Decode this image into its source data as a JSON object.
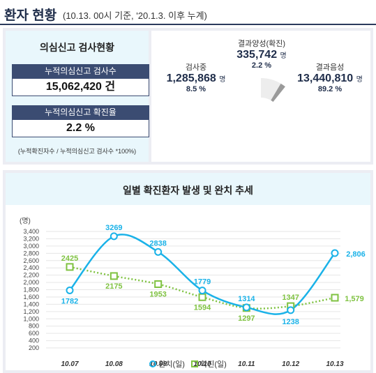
{
  "header": {
    "title": "환자 현황",
    "subtitle": "(10.13. 00시 기준, '20.1.3. 이후 누계)"
  },
  "test_box": {
    "title": "의심신고 검사현황",
    "total_label": "누적의심신고 검사수",
    "total_value": "15,062,420 건",
    "rate_label": "누적의심신고 확진율",
    "rate_value": "2.2 %",
    "note": "(누적확진자수 / 누적의심신고 검사수 *100%)"
  },
  "donut": {
    "positive": {
      "label": "결과양성(확진)",
      "value": "335,742",
      "unit": "명",
      "pct": "2.2 %"
    },
    "testing": {
      "label": "검사중",
      "value": "1,285,868",
      "unit": "명",
      "pct": "8.5 %"
    },
    "negative": {
      "label": "결과음성",
      "value": "13,440,810",
      "unit": "명",
      "pct": "89.2 %"
    },
    "colors": {
      "negative": "#1ab2e8",
      "testing": "#ededed",
      "positive": "#9a9a9a"
    }
  },
  "chart_data": {
    "type": "line",
    "title": "일별 확진환자 발생 및 완치 추세",
    "ylabel": "(명)",
    "ylim": [
      200,
      3400
    ],
    "yticks": [
      "200",
      "400",
      "600",
      "800",
      "1,000",
      "1,200",
      "1,400",
      "1,600",
      "1,800",
      "2,000",
      "2,200",
      "2,400",
      "2,600",
      "2,800",
      "3,000",
      "3,200",
      "3,400"
    ],
    "yticks_values": [
      200,
      400,
      600,
      800,
      1000,
      1200,
      1400,
      1600,
      1800,
      2000,
      2200,
      2400,
      2600,
      2800,
      3000,
      3200,
      3400
    ],
    "categories": [
      "10.07",
      "10.08",
      "10.09",
      "10.10",
      "10.11",
      "10.12",
      "10.13"
    ],
    "legend_position": "bottom",
    "series": [
      {
        "name": "완치(일)",
        "values": [
          1782,
          3269,
          2838,
          1779,
          1314,
          1238,
          2806
        ],
        "labels": [
          "1782",
          "3269",
          "2838",
          "1779",
          "1314",
          "1238",
          "2,806"
        ],
        "color": "#1ab2e8"
      },
      {
        "name": "확진(일)",
        "values": [
          2425,
          2175,
          1953,
          1594,
          1297,
          1347,
          1579
        ],
        "labels": [
          "2425",
          "2175",
          "1953",
          "1594",
          "1297",
          "1347",
          "1,579"
        ],
        "color": "#7fc241"
      }
    ]
  }
}
